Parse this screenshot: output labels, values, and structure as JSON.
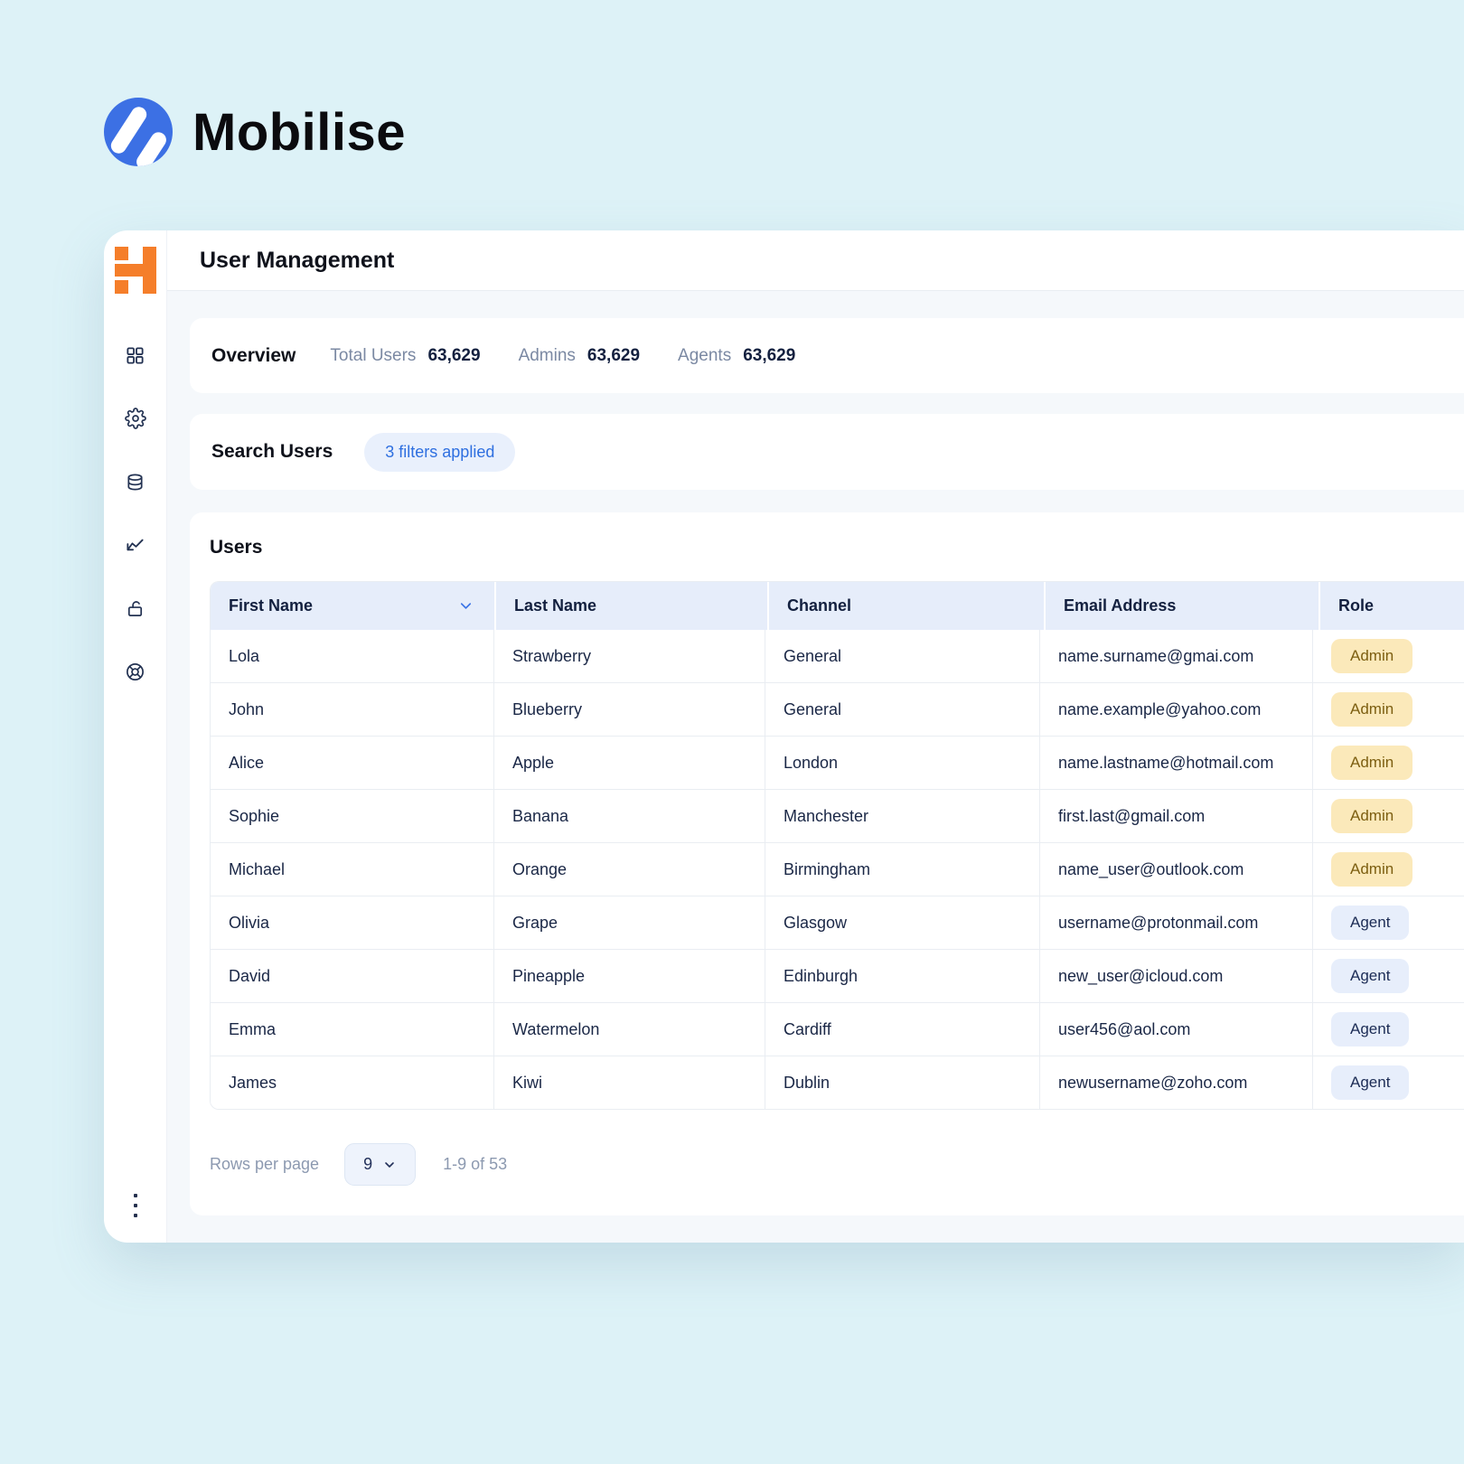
{
  "brand": {
    "name": "Mobilise"
  },
  "page": {
    "title": "User Management"
  },
  "overview": {
    "title": "Overview",
    "stats": [
      {
        "label": "Total Users",
        "value": "63,629"
      },
      {
        "label": "Admins",
        "value": "63,629"
      },
      {
        "label": "Agents",
        "value": "63,629"
      }
    ]
  },
  "search": {
    "title": "Search Users",
    "filters_badge": "3 filters applied"
  },
  "users": {
    "title": "Users",
    "columns": [
      "First Name",
      "Last Name",
      "Channel",
      "Email Address",
      "Role"
    ],
    "rows": [
      {
        "first_name": "Lola",
        "last_name": "Strawberry",
        "channel": "General",
        "email": "name.surname@gmai.com",
        "role": "Admin"
      },
      {
        "first_name": "John",
        "last_name": "Blueberry",
        "channel": "General",
        "email": "name.example@yahoo.com",
        "role": "Admin"
      },
      {
        "first_name": "Alice",
        "last_name": "Apple",
        "channel": "London",
        "email": "name.lastname@hotmail.com",
        "role": "Admin"
      },
      {
        "first_name": "Sophie",
        "last_name": "Banana",
        "channel": "Manchester",
        "email": "first.last@gmail.com",
        "role": "Admin"
      },
      {
        "first_name": "Michael",
        "last_name": "Orange",
        "channel": "Birmingham",
        "email": "name_user@outlook.com",
        "role": "Admin"
      },
      {
        "first_name": "Olivia",
        "last_name": "Grape",
        "channel": "Glasgow",
        "email": "username@protonmail.com",
        "role": "Agent"
      },
      {
        "first_name": "David",
        "last_name": "Pineapple",
        "channel": "Edinburgh",
        "email": "new_user@icloud.com",
        "role": "Agent"
      },
      {
        "first_name": "Emma",
        "last_name": "Watermelon",
        "channel": "Cardiff",
        "email": "user456@aol.com",
        "role": "Agent"
      },
      {
        "first_name": "James",
        "last_name": "Kiwi",
        "channel": "Dublin",
        "email": "newusername@zoho.com",
        "role": "Agent"
      }
    ]
  },
  "pagination": {
    "rows_per_page_label": "Rows per page",
    "rows_per_page_value": "9",
    "range_label": "1-9 of 53"
  },
  "sidebar": {
    "icons": [
      "dashboard-grid",
      "settings-gear",
      "database",
      "line-chart",
      "unlock",
      "help-life-ring"
    ],
    "overflow_menu": "kebab-menu"
  },
  "colors": {
    "page_background": "#ddf2f7",
    "brand_blue": "#3c70e4",
    "sidebar_logo_orange": "#f57e2a",
    "accent_blue": "#2e6fe0",
    "table_header_bg": "#e6edfa",
    "admin_badge_bg": "#fbe9ba",
    "admin_badge_text": "#7c5e10",
    "agent_badge_bg": "#e7eefb",
    "agent_badge_text": "#1c2c55"
  }
}
